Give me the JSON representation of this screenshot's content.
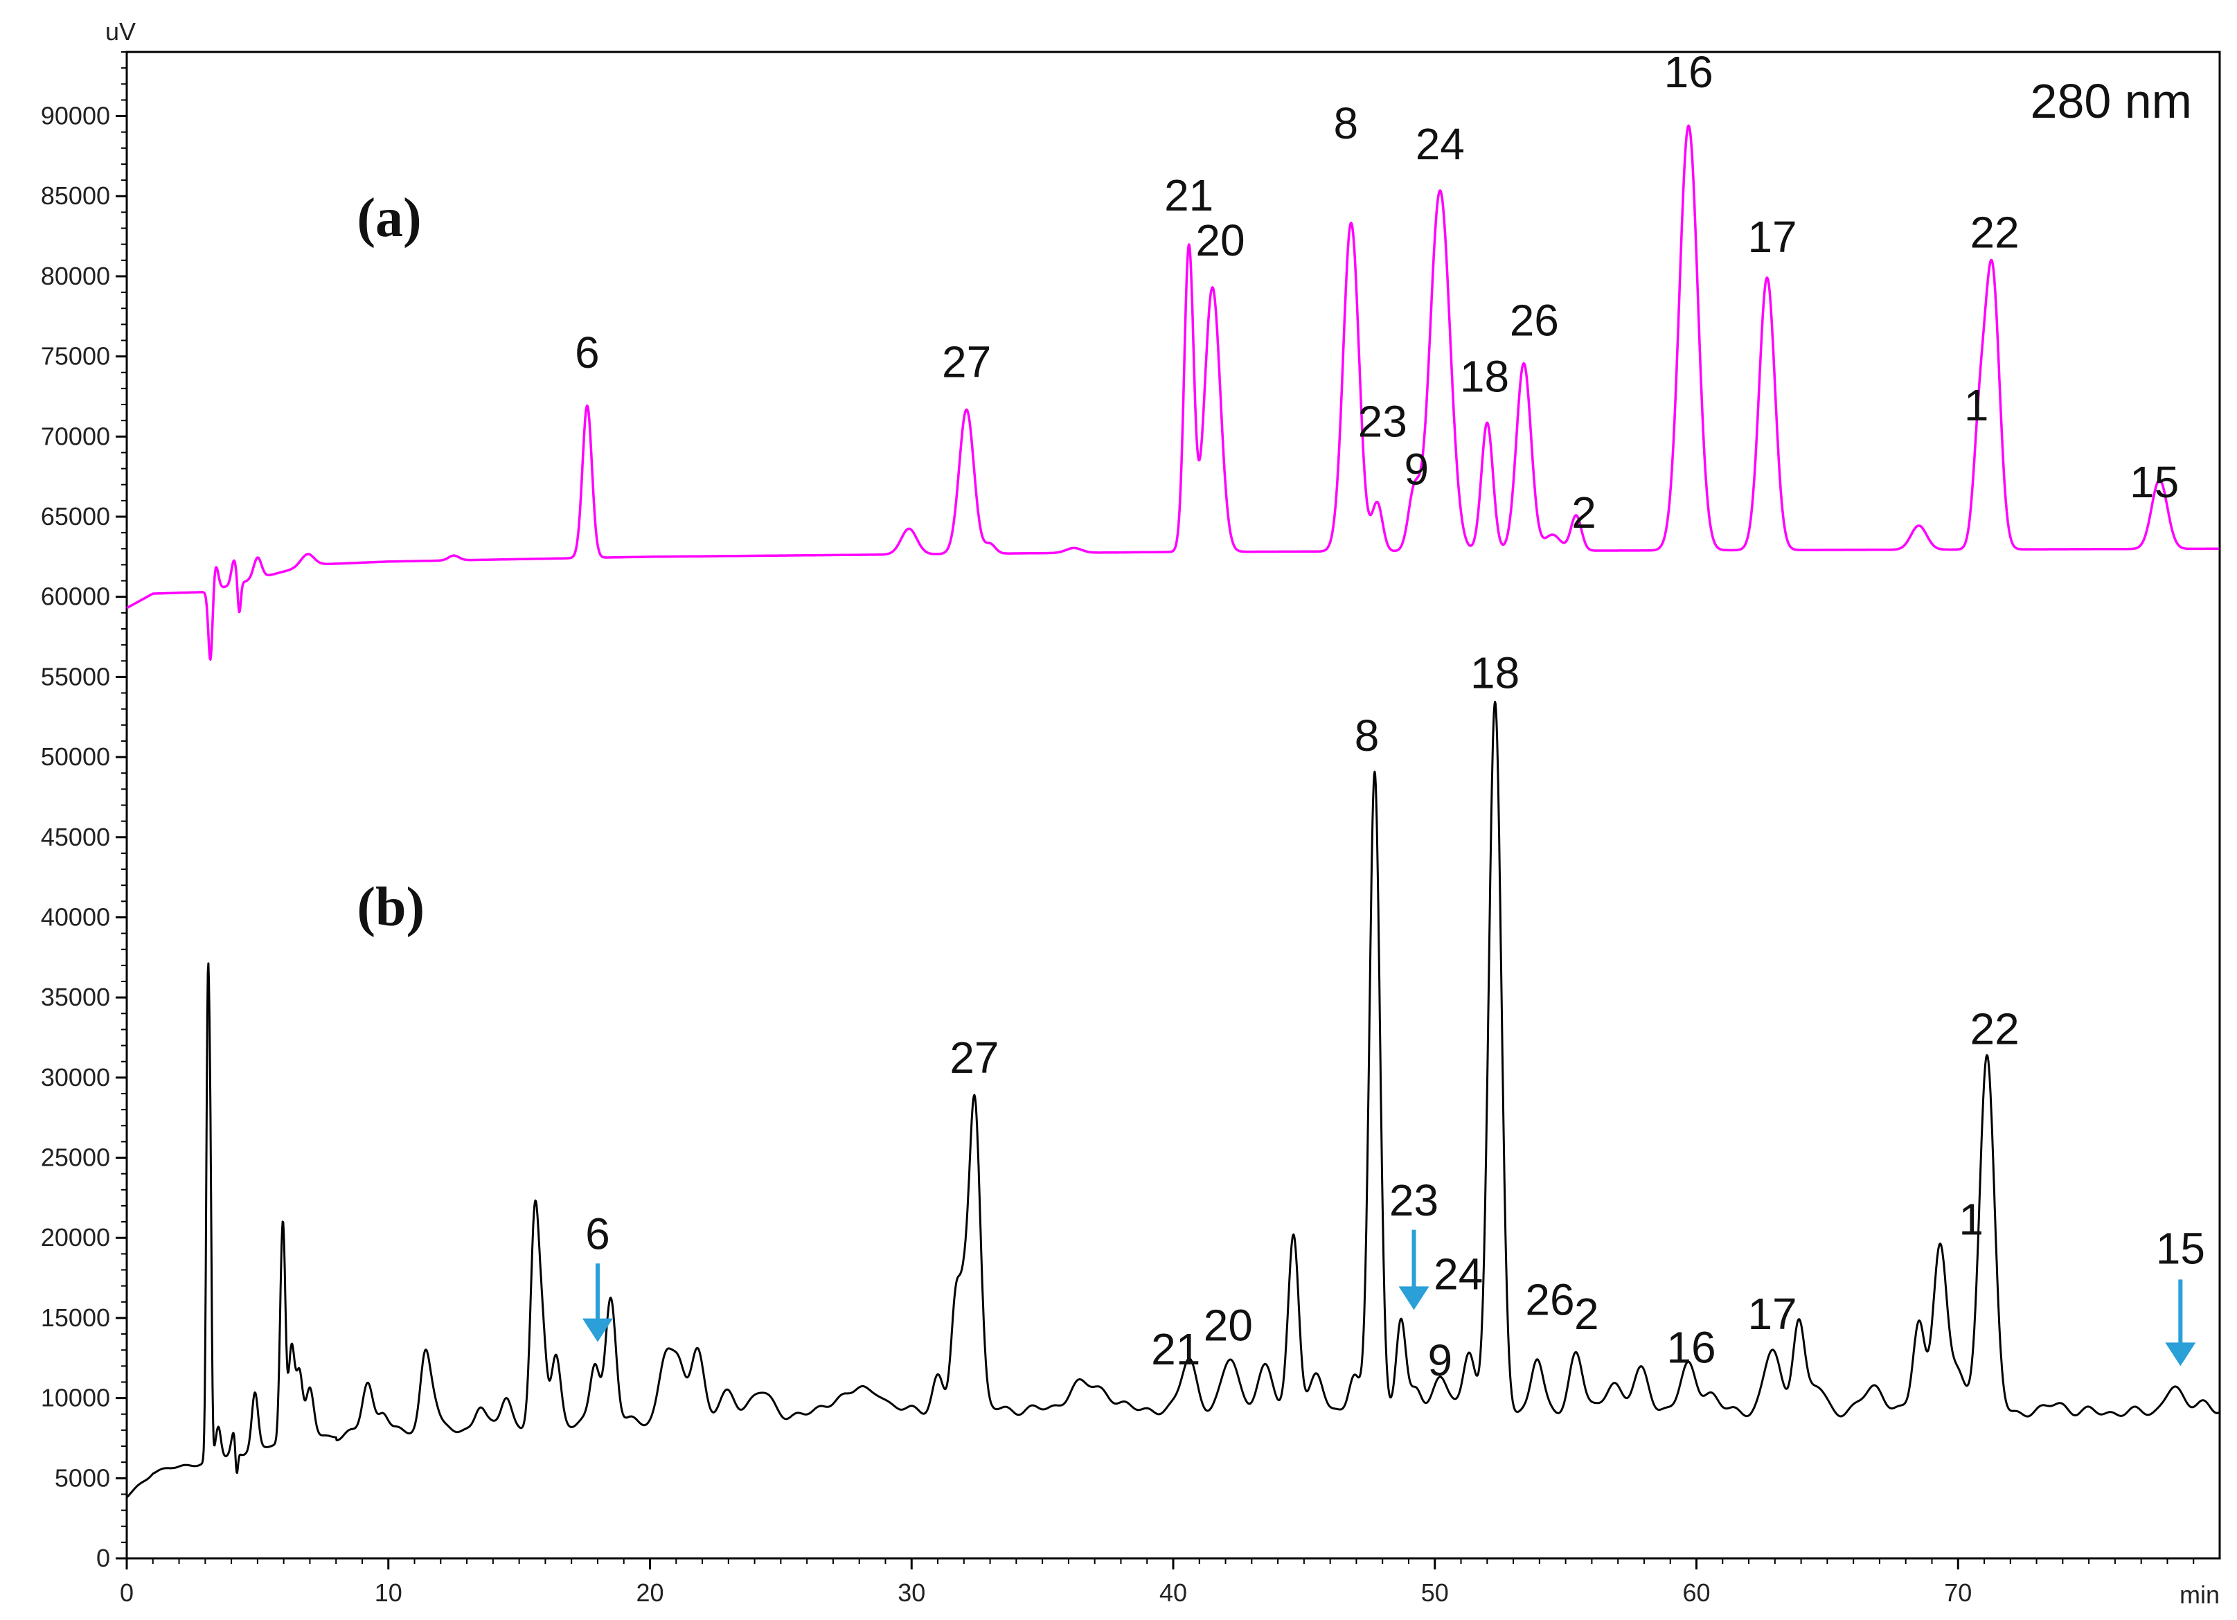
{
  "chart_data": {
    "type": "line",
    "wavelength_label": "280 nm",
    "y_unit": "uV",
    "x_unit": "min",
    "xlim": [
      0,
      80
    ],
    "ylim": [
      0,
      94000
    ],
    "x_ticks": [
      0,
      10,
      20,
      30,
      40,
      50,
      60,
      70
    ],
    "y_ticks": [
      0,
      5000,
      10000,
      15000,
      20000,
      25000,
      30000,
      35000,
      40000,
      45000,
      50000,
      55000,
      60000,
      65000,
      70000,
      75000,
      80000,
      85000,
      90000
    ],
    "colors": {
      "a": "#ff00ff",
      "b": "#000000",
      "arrow": "#2a9fd8",
      "axis": "#000000"
    },
    "panels": [
      {
        "id": "a",
        "label": "(a)",
        "baseline": [
          [
            0,
            59300
          ],
          [
            1,
            60200
          ],
          [
            3,
            60300
          ],
          [
            7,
            62000
          ],
          [
            10,
            62200
          ],
          [
            20,
            62500
          ],
          [
            40,
            62800
          ],
          [
            80,
            63000
          ]
        ],
        "peaks": [
          [
            3.2,
            -4500,
            0.08
          ],
          [
            3.4,
            1500,
            0.1
          ],
          [
            4.1,
            1500,
            0.1
          ],
          [
            4.3,
            -2000,
            0.06
          ],
          [
            5,
            1300,
            0.15
          ],
          [
            6.9,
            700,
            0.25
          ],
          [
            12.5,
            300,
            0.2
          ],
          [
            17.6,
            9500,
            0.18
          ],
          [
            29.9,
            1600,
            0.3
          ],
          [
            32.1,
            9000,
            0.28
          ],
          [
            33.0,
            600,
            0.2
          ],
          [
            36.2,
            300,
            0.3
          ],
          [
            40.6,
            19000,
            0.18
          ],
          [
            41.5,
            16500,
            0.3
          ],
          [
            46.8,
            20500,
            0.3
          ],
          [
            47.8,
            3000,
            0.2
          ],
          [
            49.2,
            3500,
            0.22
          ],
          [
            50.2,
            22500,
            0.38
          ],
          [
            52.0,
            8000,
            0.22
          ],
          [
            53.4,
            11700,
            0.28
          ],
          [
            54.5,
            1000,
            0.3
          ],
          [
            55.4,
            2200,
            0.2
          ],
          [
            59.7,
            26500,
            0.35
          ],
          [
            62.7,
            17000,
            0.3
          ],
          [
            68.5,
            1500,
            0.3
          ],
          [
            70.8,
            6500,
            0.22
          ],
          [
            71.3,
            17500,
            0.28
          ],
          [
            77.7,
            4300,
            0.3
          ]
        ],
        "labels": [
          {
            "text": "6",
            "x": 17.6,
            "y": 74300
          },
          {
            "text": "27",
            "x": 32.1,
            "y": 73700
          },
          {
            "text": "21",
            "x": 40.6,
            "y": 84100
          },
          {
            "text": "20",
            "x": 41.8,
            "y": 81300
          },
          {
            "text": "8",
            "x": 46.6,
            "y": 88600
          },
          {
            "text": "24",
            "x": 50.2,
            "y": 87300
          },
          {
            "text": "23",
            "x": 48.0,
            "y": 70000
          },
          {
            "text": "9",
            "x": 49.3,
            "y": 67000
          },
          {
            "text": "18",
            "x": 51.9,
            "y": 72800
          },
          {
            "text": "26",
            "x": 53.8,
            "y": 76300
          },
          {
            "text": "2",
            "x": 55.7,
            "y": 64300
          },
          {
            "text": "16",
            "x": 59.7,
            "y": 91800
          },
          {
            "text": "17",
            "x": 62.9,
            "y": 81500
          },
          {
            "text": "1",
            "x": 70.7,
            "y": 71000
          },
          {
            "text": "22",
            "x": 71.4,
            "y": 81800
          },
          {
            "text": "15",
            "x": 77.5,
            "y": 66200
          }
        ]
      },
      {
        "id": "b",
        "label": "(b)",
        "baseline": [
          [
            0,
            3800
          ],
          [
            1,
            5400
          ],
          [
            3,
            6000
          ],
          [
            7,
            7600
          ],
          [
            15,
            8200
          ],
          [
            30,
            9300
          ],
          [
            45,
            9300
          ],
          [
            80,
            9100
          ]
        ],
        "peaks": [
          [
            3.1,
            28500,
            0.06
          ],
          [
            3.2,
            14500,
            0.05
          ],
          [
            3.5,
            2000,
            0.1
          ],
          [
            4.1,
            1500,
            0.1
          ],
          [
            4.2,
            -2000,
            0.05
          ],
          [
            4.9,
            3500,
            0.12
          ],
          [
            5.9,
            6500,
            0.08
          ],
          [
            6.0,
            10000,
            0.08
          ],
          [
            6.3,
            6000,
            0.12
          ],
          [
            6.6,
            4000,
            0.12
          ],
          [
            7.0,
            3000,
            0.15
          ],
          [
            9.2,
            3200,
            0.2
          ],
          [
            9.8,
            1500,
            0.2
          ],
          [
            11.4,
            4500,
            0.18
          ],
          [
            11.7,
            2000,
            0.2
          ],
          [
            13.5,
            1500,
            0.2
          ],
          [
            14.5,
            2000,
            0.2
          ],
          [
            15.6,
            13000,
            0.16
          ],
          [
            15.9,
            5000,
            0.15
          ],
          [
            16.4,
            4500,
            0.18
          ],
          [
            17.9,
            3800,
            0.18
          ],
          [
            18.5,
            7800,
            0.2
          ],
          [
            20.6,
            4000,
            0.25
          ],
          [
            21.1,
            3000,
            0.25
          ],
          [
            21.8,
            4500,
            0.25
          ],
          [
            23.0,
            1500,
            0.3
          ],
          [
            24.2,
            1500,
            0.4
          ],
          [
            27.2,
            1000,
            0.4
          ],
          [
            28.0,
            1200,
            0.3
          ],
          [
            28.7,
            1200,
            0.3
          ],
          [
            31.0,
            2000,
            0.2
          ],
          [
            31.7,
            7000,
            0.18
          ],
          [
            32.0,
            4000,
            0.15
          ],
          [
            32.4,
            19800,
            0.22
          ],
          [
            36.3,
            1300,
            0.4
          ],
          [
            37.2,
            1200,
            0.5
          ],
          [
            40.6,
            3200,
            0.28
          ],
          [
            42.2,
            3200,
            0.3
          ],
          [
            43.5,
            2500,
            0.3
          ],
          [
            44.6,
            11000,
            0.2
          ],
          [
            45.5,
            2000,
            0.25
          ],
          [
            46.9,
            2000,
            0.2
          ],
          [
            47.7,
            40000,
            0.2
          ],
          [
            48.7,
            5500,
            0.18
          ],
          [
            49.3,
            1500,
            0.2
          ],
          [
            50.2,
            2200,
            0.25
          ],
          [
            51.3,
            3800,
            0.22
          ],
          [
            52.3,
            44000,
            0.24
          ],
          [
            53.9,
            3200,
            0.22
          ],
          [
            55.4,
            3600,
            0.25
          ],
          [
            56.8,
            1800,
            0.3
          ],
          [
            57.9,
            2500,
            0.3
          ],
          [
            59.7,
            2800,
            0.3
          ],
          [
            60.5,
            1000,
            0.3
          ],
          [
            62.9,
            3800,
            0.3
          ],
          [
            63.9,
            5800,
            0.22
          ],
          [
            64.6,
            1500,
            0.3
          ],
          [
            66.8,
            1500,
            0.4
          ],
          [
            68.5,
            5500,
            0.22
          ],
          [
            69.3,
            10500,
            0.26
          ],
          [
            70.0,
            2500,
            0.25
          ],
          [
            71.1,
            22300,
            0.28
          ],
          [
            73.8,
            600,
            0.3
          ],
          [
            78.2,
            1600,
            0.3
          ],
          [
            79.3,
            800,
            0.3
          ]
        ],
        "labels": [
          {
            "text": "6",
            "x": 18.0,
            "y": 19300
          },
          {
            "text": "27",
            "x": 32.4,
            "y": 30300
          },
          {
            "text": "21",
            "x": 40.1,
            "y": 12100
          },
          {
            "text": "20",
            "x": 42.1,
            "y": 13600
          },
          {
            "text": "8",
            "x": 47.4,
            "y": 50400
          },
          {
            "text": "23",
            "x": 49.2,
            "y": 21400
          },
          {
            "text": "24",
            "x": 50.9,
            "y": 16800
          },
          {
            "text": "9",
            "x": 50.2,
            "y": 11400
          },
          {
            "text": "18",
            "x": 52.3,
            "y": 54300
          },
          {
            "text": "26",
            "x": 54.4,
            "y": 15200
          },
          {
            "text": "2",
            "x": 55.8,
            "y": 14300
          },
          {
            "text": "16",
            "x": 59.8,
            "y": 12200
          },
          {
            "text": "17",
            "x": 62.9,
            "y": 14300
          },
          {
            "text": "1",
            "x": 70.5,
            "y": 20200
          },
          {
            "text": "22",
            "x": 71.4,
            "y": 32100
          },
          {
            "text": "15",
            "x": 78.5,
            "y": 18400
          }
        ],
        "arrows": [
          {
            "target": "6",
            "x": 18.0,
            "y_from": 18400,
            "y_to": 13500
          },
          {
            "target": "23",
            "x": 49.2,
            "y_from": 20500,
            "y_to": 15500
          },
          {
            "target": "15",
            "x": 78.5,
            "y_from": 17400,
            "y_to": 12000
          }
        ]
      }
    ]
  }
}
